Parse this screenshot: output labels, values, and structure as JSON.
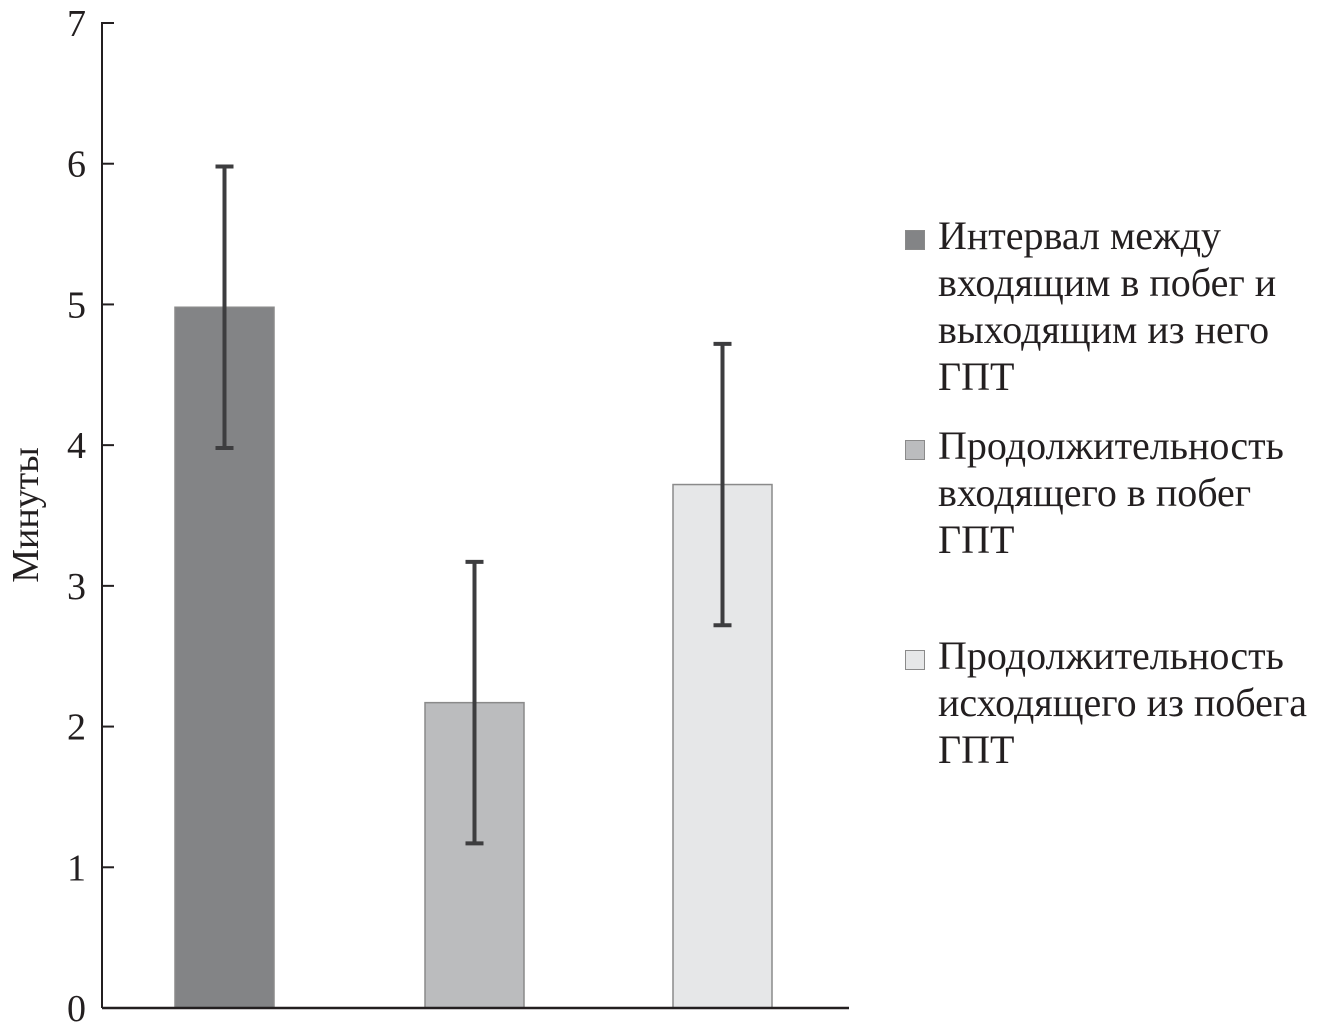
{
  "chart_data": {
    "type": "bar",
    "title": "",
    "xlabel": "",
    "ylabel": "Минуты",
    "ylim": [
      0,
      7
    ],
    "yticks": [
      "0",
      "1",
      "2",
      "3",
      "4",
      "5",
      "6",
      "7"
    ],
    "grid": false,
    "legend_position": "right",
    "series": [
      {
        "name": "Интервал между входящим в побег и выходящим из него ГПТ",
        "value": 4.98,
        "error": 1.0,
        "color": "#838486"
      },
      {
        "name": "Продолжительность входящего в побег ГПТ",
        "value": 2.17,
        "error": 1.0,
        "color": "#bbbcbe"
      },
      {
        "name": "Продолжительность исходящего из побега ГПТ",
        "value": 3.72,
        "error": 1.0,
        "color": "#e6e7e8"
      }
    ],
    "legend": [
      {
        "lines": [
          "Интервал между",
          "входящим в побег и",
          "выходящим из него",
          "ГПТ"
        ]
      },
      {
        "lines": [
          "Продолжительность",
          "входящего в побег",
          "ГПТ"
        ]
      },
      {
        "lines": [
          "Продолжительность",
          "исходящего из побега",
          "ГПТ"
        ]
      }
    ]
  }
}
